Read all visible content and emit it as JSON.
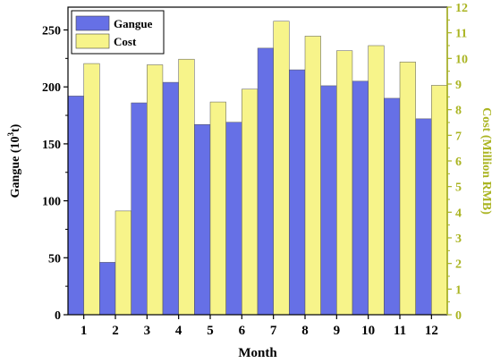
{
  "chart_data": {
    "type": "bar",
    "categories": [
      "1",
      "2",
      "3",
      "4",
      "5",
      "6",
      "7",
      "8",
      "9",
      "10",
      "11",
      "12"
    ],
    "series": [
      {
        "name": "Gangue",
        "axis": "left",
        "color": "#6670e6",
        "values": [
          192,
          46,
          186,
          204,
          167,
          169,
          234,
          215,
          201,
          205,
          190,
          172
        ]
      },
      {
        "name": "Cost",
        "axis": "right",
        "color": "#f7f48a",
        "values": [
          9.8,
          4.05,
          9.75,
          9.97,
          8.3,
          8.8,
          11.45,
          10.87,
          10.3,
          10.5,
          9.86,
          8.95
        ]
      }
    ],
    "xlabel": "Month",
    "ylabel_left_text": "Gangue (10",
    "ylabel_left_sup": "3",
    "ylabel_left_tail": "t)",
    "ylabel_right": "Cost (Million RMB)",
    "ylim_left": [
      0,
      270
    ],
    "ylim_right": [
      0,
      12
    ],
    "yticks_left": [
      0,
      50,
      100,
      150,
      200,
      250
    ],
    "yticks_right": [
      0,
      1,
      2,
      3,
      4,
      5,
      6,
      7,
      8,
      9,
      10,
      11,
      12
    ],
    "legend_position": "top-left",
    "right_axis_color": "#aab421",
    "grid": false
  }
}
